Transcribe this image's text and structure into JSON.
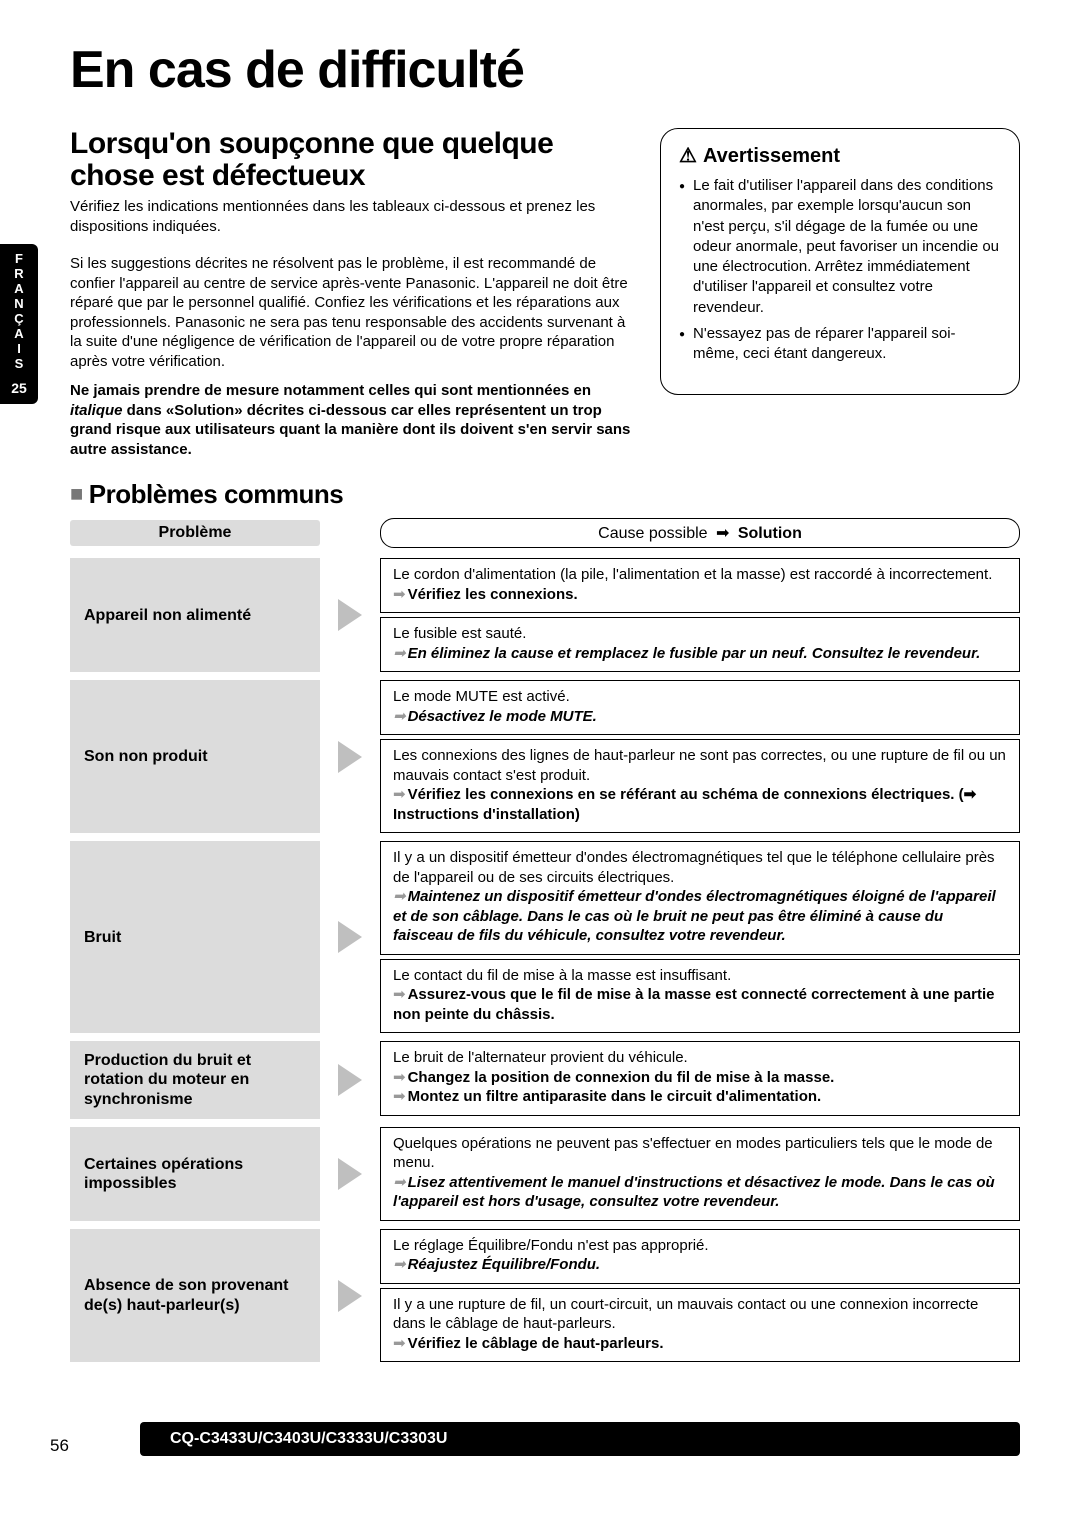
{
  "sideTab": {
    "lang": "FRANÇAIS",
    "pageNum": "25"
  },
  "title": "En cas de difficulté",
  "section": {
    "heading": "Lorsqu'on soupçonne que quelque chose est défectueux",
    "intro": "Vérifiez les indications mentionnées dans les tableaux ci-dessous et prenez les dispositions indiquées.",
    "para": "Si les suggestions décrites ne résolvent pas le problème, il est recommandé de confier l'appareil au centre de service après-vente Panasonic. L'appareil ne doit être réparé que par le personnel qualifié. Confiez les vérifications et les réparations aux professionnels. Panasonic ne sera pas tenu responsable des accidents survenant à la suite d'une négligence de vérification de l'appareil ou de votre propre réparation après votre vérification.",
    "bold1": "Ne jamais prendre de mesure notamment celles qui sont mentionnées en ",
    "boldItal": "italique",
    "bold2": " dans «Solution» décrites ci-dessous car elles représentent un trop grand risque aux utilisateurs quant la manière dont ils doivent s'en servir sans autre assistance."
  },
  "warn": {
    "title": "Avertissement",
    "items": [
      "Le fait d'utiliser l'appareil dans des conditions anormales, par exemple lorsqu'aucun son n'est perçu, s'il dégage de la fumée ou une odeur anormale, peut favoriser un incendie ou une électrocution. Arrêtez immédiatement d'utiliser l'appareil et consultez votre revendeur.",
      "N'essayez pas de réparer l'appareil soi-même, ceci étant dangereux."
    ]
  },
  "subheading": "Problèmes communs",
  "header": {
    "problem": "Problème",
    "cause": "Cause possible ",
    "arrow": "➡",
    "solution": " Solution"
  },
  "rows": [
    {
      "problem": "Appareil non alimenté",
      "solutions": [
        {
          "cause": "Le cordon d'alimentation (la pile, l'alimentation et la masse) est raccordé à incorrectement.",
          "sol": "Vérifiez les connexions.",
          "italic": false
        },
        {
          "cause": "Le fusible est sauté.",
          "sol": "En éliminez la cause et remplacez le fusible par un neuf. Consultez le revendeur.",
          "italic": true
        }
      ]
    },
    {
      "problem": "Son non produit",
      "solutions": [
        {
          "cause": "Le mode MUTE est activé.",
          "sol": "Désactivez le mode MUTE.",
          "italic": true
        },
        {
          "cause": "Les connexions des lignes de haut-parleur ne sont pas correctes, ou une rupture de fil ou un mauvais contact s'est produit.",
          "sol": "Vérifiez les connexions en se référant au schéma de connexions électriques. (➡ Instructions d'installation)",
          "italic": false
        }
      ]
    },
    {
      "problem": "Bruit",
      "solutions": [
        {
          "cause": "Il y a un dispositif émetteur d'ondes électromagnétiques tel que le téléphone cellulaire près de l'appareil ou de ses circuits électriques.",
          "sol": "Maintenez un dispositif émetteur d'ondes électromagnétiques éloigné de l'appareil et de son câblage. Dans le cas où le bruit ne peut pas être éliminé à cause du faisceau de fils du véhicule, consultez votre revendeur.",
          "italic": true
        },
        {
          "cause": "Le contact du fil de mise à la masse est insuffisant.",
          "sol": "Assurez-vous que le fil de mise à la masse est connecté correctement à une partie non peinte du châssis.",
          "italic": false
        }
      ]
    },
    {
      "problem": "Production du bruit et rotation du moteur en synchronisme",
      "solutions": [
        {
          "cause": "Le bruit de l'alternateur provient du véhicule.",
          "sol": "Changez la position de connexion du fil de mise à la masse.",
          "sol2": "Montez un filtre antiparasite dans le circuit d'alimentation.",
          "italic": false
        }
      ]
    },
    {
      "problem": "Certaines opérations impossibles",
      "solutions": [
        {
          "cause": "Quelques opérations ne peuvent pas s'effectuer en modes particuliers tels que le mode de menu.",
          "sol": "Lisez attentivement le manuel d'instructions et désactivez le mode. Dans le cas où l'appareil est hors d'usage, consultez votre revendeur.",
          "italic": true
        }
      ]
    },
    {
      "problem": "Absence de son provenant de(s) haut-parleur(s)",
      "solutions": [
        {
          "cause": "Le réglage Équilibre/Fondu n'est pas approprié.",
          "sol": "Réajustez Équilibre/Fondu.",
          "italic": true
        },
        {
          "cause": "Il y a une rupture de fil, un court-circuit, un mauvais contact ou une connexion incorrecte dans le câblage de haut-parleurs.",
          "sol": "Vérifiez le câblage de haut-parleurs.",
          "italic": false
        }
      ]
    }
  ],
  "footer": {
    "page": "56",
    "model": "CQ-C3433U/C3403U/C3333U/C3303U"
  },
  "colors": {
    "grayBg": "#dcdcdc",
    "triGray": "#bfbfbf",
    "black": "#000000"
  }
}
